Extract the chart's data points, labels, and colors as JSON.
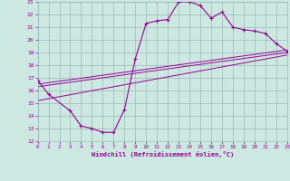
{
  "xlabel": "Windchill (Refroidissement éolien,°C)",
  "bg_color": "#cce8e0",
  "grid_color": "#99bbbb",
  "line_color": "#990099",
  "spine_color": "#6688aa",
  "xmin": 0,
  "xmax": 23,
  "ymin": 12,
  "ymax": 23,
  "curve1_x": [
    0,
    1,
    3,
    4,
    5,
    6,
    7,
    8,
    9,
    10,
    11,
    12,
    13,
    14,
    15,
    16,
    17,
    18,
    19,
    20,
    21,
    22,
    23
  ],
  "curve1_y": [
    16.8,
    15.7,
    14.4,
    13.2,
    13.0,
    12.7,
    12.7,
    14.5,
    18.5,
    21.3,
    21.5,
    21.6,
    23.0,
    23.0,
    22.7,
    21.7,
    22.2,
    21.0,
    20.8,
    20.7,
    20.5,
    19.7,
    19.1
  ],
  "line1_x": [
    0,
    23
  ],
  "line1_y": [
    16.5,
    19.2
  ],
  "line2_x": [
    0,
    23
  ],
  "line2_y": [
    16.3,
    19.0
  ],
  "line3_x": [
    0,
    23
  ],
  "line3_y": [
    15.2,
    18.8
  ]
}
